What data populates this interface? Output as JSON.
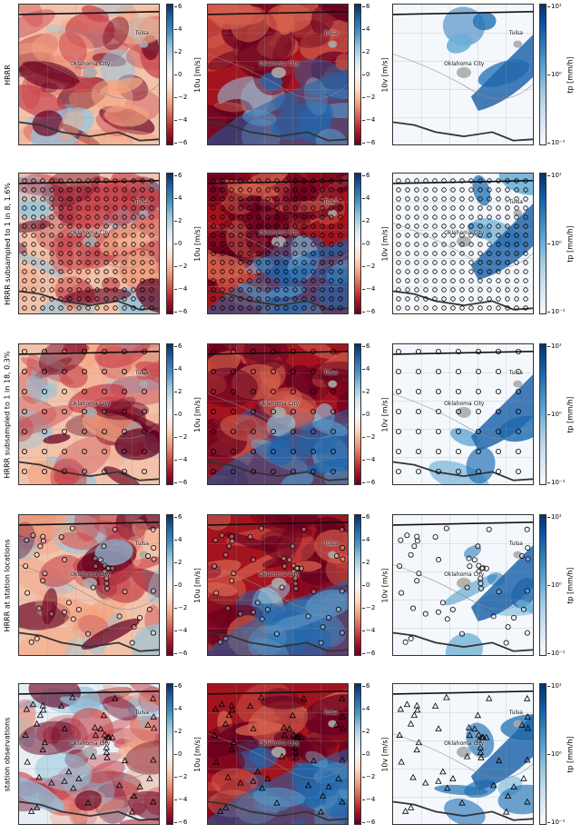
{
  "rows": [
    {
      "label": "HRRR",
      "markers": "none"
    },
    {
      "label": "HRRR subsampled to 1 in 8, 1.6%",
      "markers": "dense-grid"
    },
    {
      "label": "HRRR subsampled to 1 in 18, 0.3%",
      "markers": "sparse-grid"
    },
    {
      "label": "HRRR at station locations",
      "markers": "stations-circle"
    },
    {
      "label": "station observations",
      "markers": "stations-triangle"
    }
  ],
  "columns": [
    {
      "variable": "10u",
      "colorbar_label": "10u [m/s]",
      "ticks": [
        "6",
        "4",
        "2",
        "0",
        "−2",
        "−4",
        "−6"
      ],
      "colormap": "RdBu"
    },
    {
      "variable": "10v",
      "colorbar_label": "10v [m/s]",
      "ticks": [
        "6",
        "4",
        "2",
        "0",
        "−2",
        "−4",
        "−6"
      ],
      "colormap": "RdBu"
    },
    {
      "variable": "tp",
      "colorbar_label": "tp [mm/h]",
      "ticks": [
        "10¹",
        "10⁰",
        "10⁻¹"
      ],
      "colormap": "Blues-log"
    }
  ],
  "cities": {
    "okc": "Oklahoma City",
    "tulsa": "Tulsa"
  },
  "colors": {
    "red": "#b2182b",
    "dark_red": "#67001f",
    "blue": "#2166ac",
    "dark_blue": "#08306b",
    "light": "#f7f7f7"
  }
}
